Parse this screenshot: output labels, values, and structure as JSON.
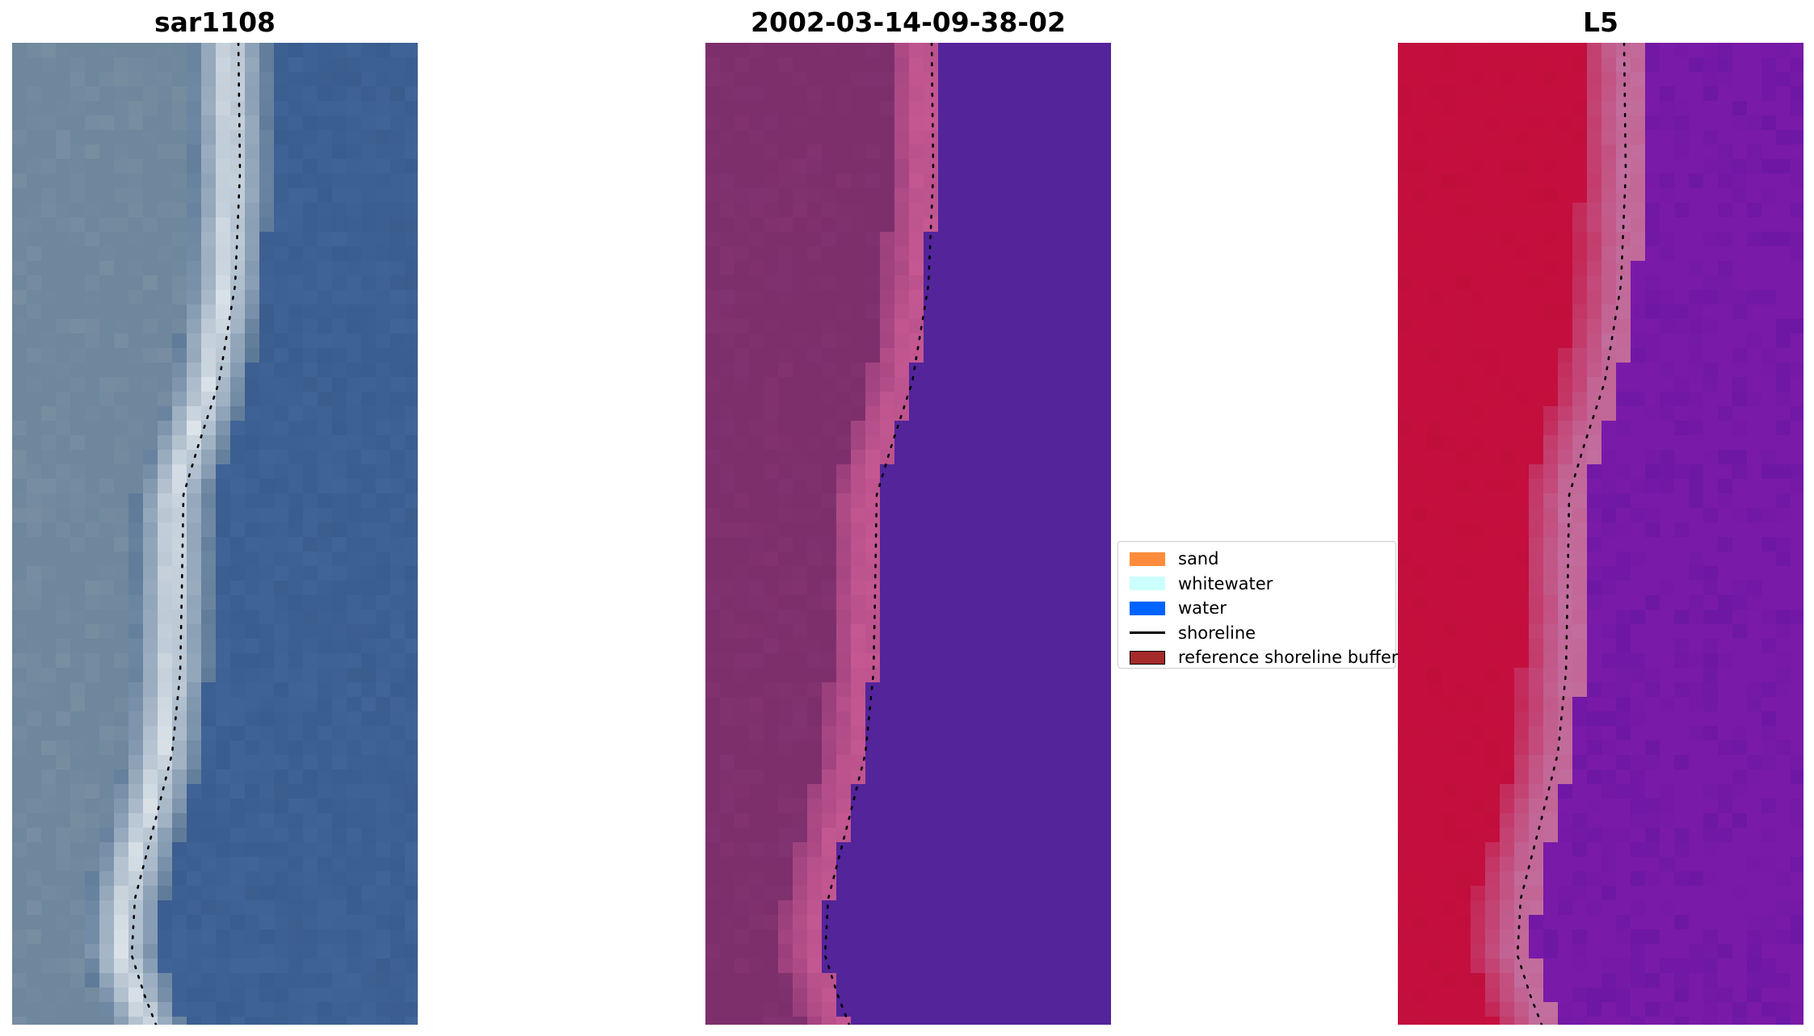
{
  "figure": {
    "panels": [
      {
        "id": "rgb",
        "title": "sar1108",
        "palette": "rgb"
      },
      {
        "id": "classified",
        "title": "2002-03-14-09-38-02",
        "palette": "classified"
      },
      {
        "id": "mndwi",
        "title": "L5",
        "palette": "index"
      }
    ],
    "legend": {
      "items": [
        {
          "label": "sand",
          "color": "#ff8c3c",
          "kind": "patch"
        },
        {
          "label": "whitewater",
          "color": "#ccfefe",
          "kind": "patch"
        },
        {
          "label": "water",
          "color": "#0063ff",
          "kind": "patch"
        },
        {
          "label": "shoreline",
          "color": "#000000",
          "kind": "line"
        },
        {
          "label": "reference shoreline buffer",
          "color": "#a52a2a",
          "kind": "patch"
        }
      ]
    },
    "colors": {
      "rgb_land": "#6e879d",
      "rgb_water": "#3b5e90",
      "rgb_surf": "#e6ecf0",
      "class_land": "#7d2f6c",
      "class_buffer": "#c05590",
      "class_water": "#53249a",
      "index_land": "#c40f3e",
      "index_buffer": "#c26a9a",
      "index_water": "#7a1aa8",
      "shoreline": "#000000"
    }
  }
}
